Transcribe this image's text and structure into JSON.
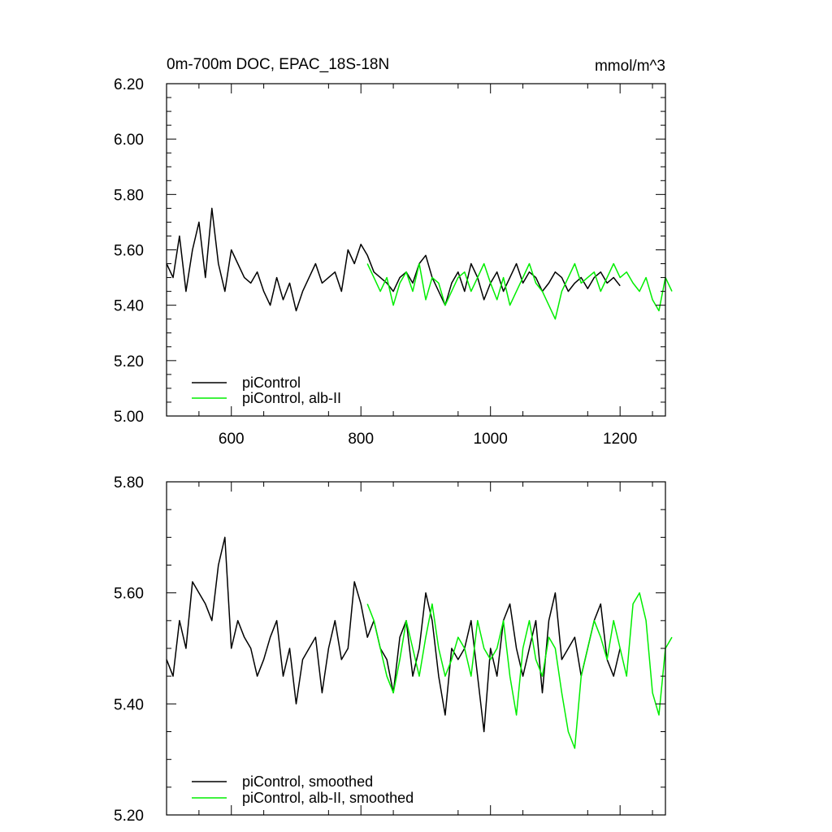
{
  "chart_data": [
    {
      "type": "line",
      "title": "0m-700m DOC, EPAC_18S-18N",
      "units": "mmol/m^3",
      "xlabel": "",
      "ylabel": "",
      "xlim": [
        500,
        1270
      ],
      "ylim": [
        5.0,
        6.2
      ],
      "x_ticks": [
        600,
        800,
        1000,
        1200
      ],
      "x_tick_labels": [
        "600",
        "800",
        "1000",
        "1200"
      ],
      "y_ticks": [
        5.0,
        5.2,
        5.4,
        5.6,
        5.8,
        6.0,
        6.2
      ],
      "y_tick_labels": [
        "5.00",
        "5.20",
        "5.40",
        "5.60",
        "5.80",
        "6.00",
        "6.20"
      ],
      "grid": false,
      "legend_position": "bottom-left",
      "series": [
        {
          "name": "piControl",
          "color": "#000000",
          "x_start": 500,
          "x_step": 10,
          "values": [
            5.55,
            5.5,
            5.65,
            5.45,
            5.6,
            5.7,
            5.5,
            5.75,
            5.55,
            5.45,
            5.6,
            5.55,
            5.5,
            5.48,
            5.52,
            5.45,
            5.4,
            5.5,
            5.42,
            5.48,
            5.38,
            5.45,
            5.5,
            5.55,
            5.48,
            5.5,
            5.52,
            5.45,
            5.6,
            5.55,
            5.62,
            5.58,
            5.52,
            5.5,
            5.48,
            5.45,
            5.5,
            5.52,
            5.48,
            5.55,
            5.58,
            5.5,
            5.45,
            5.4,
            5.48,
            5.52,
            5.45,
            5.55,
            5.5,
            5.42,
            5.48,
            5.52,
            5.45,
            5.5,
            5.55,
            5.48,
            5.52,
            5.5,
            5.45,
            5.48,
            5.52,
            5.5,
            5.45,
            5.48,
            5.5,
            5.46,
            5.5,
            5.52,
            5.48,
            5.5,
            5.47
          ]
        },
        {
          "name": "piControl, alb-II",
          "color": "#00ee00",
          "x_start": 810,
          "x_step": 10,
          "values": [
            5.55,
            5.5,
            5.45,
            5.5,
            5.4,
            5.48,
            5.52,
            5.45,
            5.55,
            5.42,
            5.5,
            5.48,
            5.4,
            5.45,
            5.5,
            5.52,
            5.45,
            5.5,
            5.55,
            5.48,
            5.42,
            5.5,
            5.4,
            5.45,
            5.5,
            5.55,
            5.48,
            5.45,
            5.4,
            5.35,
            5.45,
            5.5,
            5.55,
            5.48,
            5.5,
            5.52,
            5.45,
            5.5,
            5.55,
            5.5,
            5.52,
            5.48,
            5.45,
            5.5,
            5.42,
            5.38,
            5.5,
            5.45
          ]
        }
      ]
    },
    {
      "type": "line",
      "title": "",
      "xlabel": "",
      "ylabel": "",
      "xlim": [
        500,
        1270
      ],
      "ylim": [
        5.2,
        5.8
      ],
      "x_ticks": [
        600,
        800,
        1000,
        1200
      ],
      "x_tick_labels": [],
      "y_ticks": [
        5.2,
        5.4,
        5.6,
        5.8
      ],
      "y_tick_labels": [
        "5.20",
        "5.40",
        "5.60",
        "5.80"
      ],
      "grid": false,
      "legend_position": "bottom-left",
      "series": [
        {
          "name": "piControl, smoothed",
          "color": "#000000",
          "x_start": 500,
          "x_step": 10,
          "values": [
            5.48,
            5.45,
            5.55,
            5.5,
            5.62,
            5.6,
            5.58,
            5.55,
            5.65,
            5.7,
            5.5,
            5.55,
            5.52,
            5.5,
            5.45,
            5.48,
            5.52,
            5.55,
            5.45,
            5.5,
            5.4,
            5.48,
            5.5,
            5.52,
            5.42,
            5.5,
            5.55,
            5.48,
            5.5,
            5.62,
            5.58,
            5.52,
            5.55,
            5.5,
            5.48,
            5.42,
            5.52,
            5.55,
            5.45,
            5.5,
            5.6,
            5.55,
            5.45,
            5.38,
            5.5,
            5.48,
            5.5,
            5.55,
            5.45,
            5.35,
            5.5,
            5.45,
            5.55,
            5.58,
            5.5,
            5.45,
            5.5,
            5.55,
            5.42,
            5.55,
            5.6,
            5.48,
            5.5,
            5.52,
            5.45,
            5.5,
            5.55,
            5.58,
            5.48,
            5.45,
            5.5
          ]
        },
        {
          "name": "piControl, alb-II, smoothed",
          "color": "#00ee00",
          "x_start": 810,
          "x_step": 10,
          "values": [
            5.58,
            5.55,
            5.5,
            5.45,
            5.42,
            5.48,
            5.55,
            5.5,
            5.45,
            5.52,
            5.58,
            5.5,
            5.45,
            5.48,
            5.52,
            5.5,
            5.45,
            5.55,
            5.5,
            5.48,
            5.5,
            5.55,
            5.45,
            5.38,
            5.5,
            5.55,
            5.48,
            5.45,
            5.52,
            5.5,
            5.42,
            5.35,
            5.32,
            5.45,
            5.5,
            5.55,
            5.52,
            5.48,
            5.55,
            5.5,
            5.45,
            5.58,
            5.6,
            5.55,
            5.42,
            5.38,
            5.5,
            5.52
          ]
        }
      ]
    }
  ]
}
